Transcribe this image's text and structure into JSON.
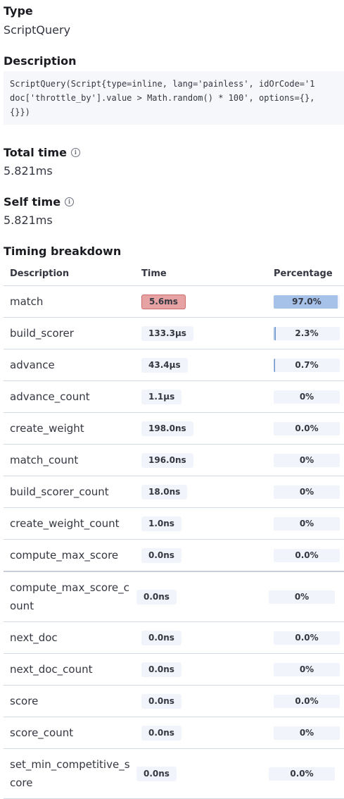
{
  "type": {
    "label": "Type",
    "value": "ScriptQuery"
  },
  "description": {
    "label": "Description",
    "code_lines": [
      "ScriptQuery(Script{type=inline, lang='painless', idOrCode='1",
      "doc['throttle_by'].value > Math.random() * 100', options={},",
      "{}})"
    ]
  },
  "total_time": {
    "label": "Total time",
    "value": "5.821ms"
  },
  "self_time": {
    "label": "Self time",
    "value": "5.821ms"
  },
  "timing": {
    "label": "Timing breakdown",
    "columns": [
      "Description",
      "Time",
      "Percentage"
    ],
    "rows": [
      {
        "description": "match",
        "time": "5.6ms",
        "percentage": "97.0%",
        "pct_value": 97.0,
        "hot": true
      },
      {
        "description": "build_scorer",
        "time": "133.3µs",
        "percentage": "2.3%",
        "pct_value": 2.3,
        "hot": false
      },
      {
        "description": "advance",
        "time": "43.4µs",
        "percentage": "0.7%",
        "pct_value": 0.7,
        "hot": false
      },
      {
        "description": "advance_count",
        "time": "1.1µs",
        "percentage": "0%",
        "pct_value": 0,
        "hot": false
      },
      {
        "description": "create_weight",
        "time": "198.0ns",
        "percentage": "0.0%",
        "pct_value": 0,
        "hot": false
      },
      {
        "description": "match_count",
        "time": "196.0ns",
        "percentage": "0%",
        "pct_value": 0,
        "hot": false
      },
      {
        "description": "build_scorer_count",
        "time": "18.0ns",
        "percentage": "0%",
        "pct_value": 0,
        "hot": false
      },
      {
        "description": "create_weight_count",
        "time": "1.0ns",
        "percentage": "0%",
        "pct_value": 0,
        "hot": false
      },
      {
        "description": "compute_max_score",
        "time": "0.0ns",
        "percentage": "0.0%",
        "pct_value": 0,
        "hot": false
      },
      {
        "description": "compute_max_score_count",
        "time": "0.0ns",
        "percentage": "0%",
        "pct_value": 0,
        "hot": false
      },
      {
        "description": "next_doc",
        "time": "0.0ns",
        "percentage": "0.0%",
        "pct_value": 0,
        "hot": false
      },
      {
        "description": "next_doc_count",
        "time": "0.0ns",
        "percentage": "0%",
        "pct_value": 0,
        "hot": false
      },
      {
        "description": "score",
        "time": "0.0ns",
        "percentage": "0.0%",
        "pct_value": 0,
        "hot": false
      },
      {
        "description": "score_count",
        "time": "0.0ns",
        "percentage": "0%",
        "pct_value": 0,
        "hot": false
      },
      {
        "description": "set_min_competitive_score",
        "time": "0.0ns",
        "percentage": "0.0%",
        "pct_value": 0,
        "hot": false
      }
    ]
  },
  "colors": {
    "hot_badge": "#e7a3a3",
    "pct_fill": "#a6c2e8",
    "code_bg": "#f5f7fa"
  }
}
